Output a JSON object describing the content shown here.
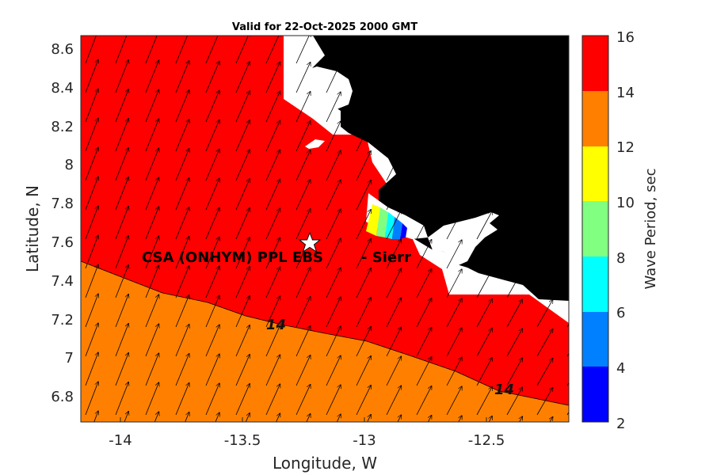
{
  "title": "Valid for 22-Oct-2025 2000 GMT",
  "xlabel": "Longitude, W",
  "ylabel": "Latitude, N",
  "colorbar_label": "Wave Period, sec",
  "site_label": "CSA (ONHYM) PPL EBS",
  "site_label_secondary": "- Sierr",
  "x_ticks": [
    "-14",
    "-13.5",
    "-13",
    "-12.5"
  ],
  "y_ticks": [
    "8.6",
    "8.4",
    "8.2",
    "8",
    "7.8",
    "7.6",
    "7.4",
    "7.2",
    "7",
    "6.8"
  ],
  "colorbar_ticks": [
    "16",
    "14",
    "12",
    "10",
    "8",
    "6",
    "4",
    "2"
  ],
  "contour_labels": [
    "14",
    "14"
  ],
  "chart_data": {
    "type": "heatmap",
    "title": "Valid for 22-Oct-2025 2000 GMT",
    "xlabel": "Longitude, W",
    "ylabel": "Latitude, N",
    "xlim": [
      -14.2,
      -12.2
    ],
    "ylim": [
      6.67,
      8.67
    ],
    "x_ticks": [
      -14,
      -13.5,
      -13,
      -12.5
    ],
    "y_ticks": [
      8.6,
      8.4,
      8.2,
      8.0,
      7.8,
      7.6,
      7.4,
      7.2,
      7.0,
      6.8
    ],
    "colorbar": {
      "label": "Wave Period, sec",
      "range": [
        2,
        16
      ],
      "levels": [
        2,
        4,
        6,
        8,
        10,
        12,
        14,
        16
      ],
      "colors": [
        "#0000ff",
        "#0080ff",
        "#00ffff",
        "#80ff80",
        "#ffff00",
        "#ff8000",
        "#ff0000"
      ]
    },
    "contour_14_line": [
      [
        -14.2,
        7.5
      ],
      [
        -13.85,
        7.34
      ],
      [
        -13.65,
        7.29
      ],
      [
        -13.5,
        7.22
      ],
      [
        -13.35,
        7.17
      ],
      [
        -13.15,
        7.13
      ],
      [
        -13.0,
        7.09
      ],
      [
        -12.8,
        7.01
      ],
      [
        -12.6,
        6.93
      ],
      [
        -12.4,
        6.82
      ],
      [
        -12.2,
        6.75
      ]
    ],
    "contour_labels": [
      {
        "text": "14",
        "lon": -13.38,
        "lat": 7.17
      },
      {
        "text": "14",
        "lon": -12.43,
        "lat": 6.82
      }
    ],
    "site": {
      "label": "CSA (ONHYM) PPL EBS",
      "lon": -13.23,
      "lat": 7.6
    },
    "land_color": "#000000",
    "grid": false
  }
}
